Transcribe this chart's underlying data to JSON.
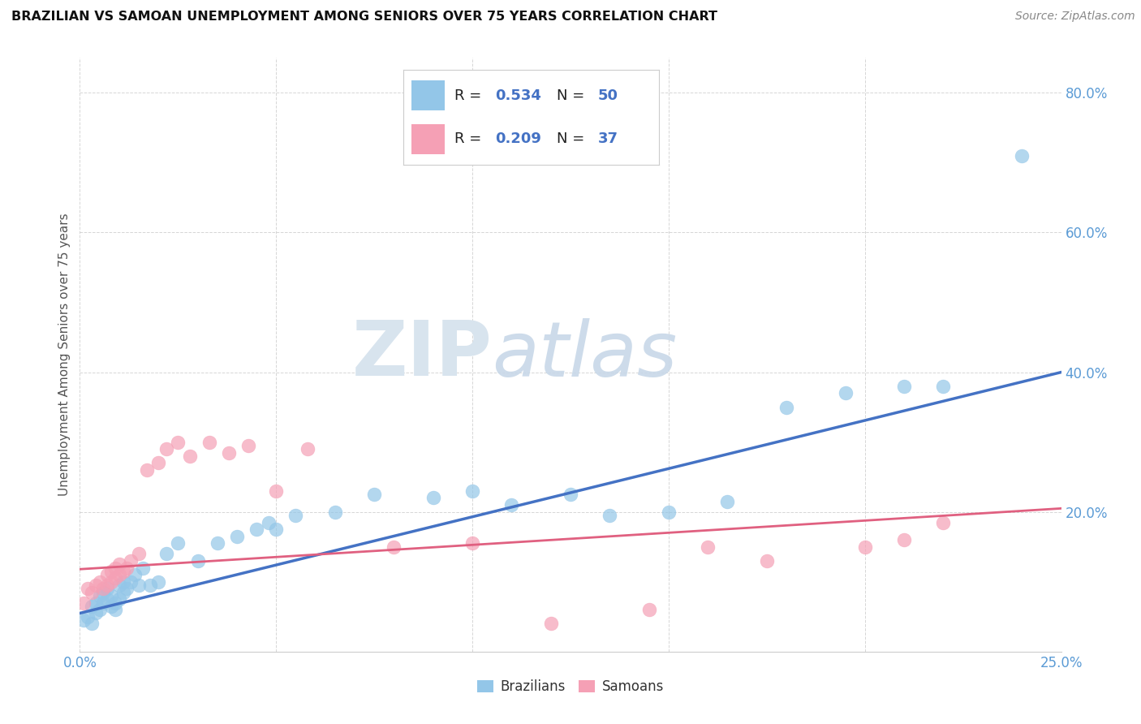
{
  "title": "BRAZILIAN VS SAMOAN UNEMPLOYMENT AMONG SENIORS OVER 75 YEARS CORRELATION CHART",
  "source": "Source: ZipAtlas.com",
  "ylabel": "Unemployment Among Seniors over 75 years",
  "xlim": [
    0.0,
    0.25
  ],
  "ylim": [
    0.0,
    0.85
  ],
  "xticks": [
    0.0,
    0.05,
    0.1,
    0.15,
    0.2,
    0.25
  ],
  "yticks": [
    0.0,
    0.2,
    0.4,
    0.6,
    0.8
  ],
  "brazil_color": "#93C6E8",
  "samoa_color": "#F5A0B5",
  "brazil_line_color": "#4472C4",
  "samoa_line_color": "#E06080",
  "stat_color": "#4472C4",
  "brazil_R": "0.534",
  "brazil_N": "50",
  "samoa_R": "0.209",
  "samoa_N": "37",
  "watermark_zip": "ZIP",
  "watermark_atlas": "atlas",
  "brazil_x": [
    0.001,
    0.002,
    0.003,
    0.003,
    0.004,
    0.004,
    0.005,
    0.005,
    0.006,
    0.006,
    0.007,
    0.007,
    0.008,
    0.008,
    0.009,
    0.009,
    0.01,
    0.01,
    0.011,
    0.011,
    0.012,
    0.013,
    0.014,
    0.015,
    0.016,
    0.018,
    0.02,
    0.022,
    0.025,
    0.03,
    0.035,
    0.04,
    0.045,
    0.048,
    0.05,
    0.055,
    0.065,
    0.075,
    0.09,
    0.1,
    0.11,
    0.125,
    0.135,
    0.15,
    0.165,
    0.18,
    0.195,
    0.21,
    0.22,
    0.24
  ],
  "brazil_y": [
    0.045,
    0.05,
    0.04,
    0.065,
    0.055,
    0.07,
    0.06,
    0.08,
    0.07,
    0.085,
    0.075,
    0.09,
    0.065,
    0.08,
    0.06,
    0.07,
    0.075,
    0.095,
    0.085,
    0.1,
    0.09,
    0.1,
    0.11,
    0.095,
    0.12,
    0.095,
    0.1,
    0.14,
    0.155,
    0.13,
    0.155,
    0.165,
    0.175,
    0.185,
    0.175,
    0.195,
    0.2,
    0.225,
    0.22,
    0.23,
    0.21,
    0.225,
    0.195,
    0.2,
    0.215,
    0.35,
    0.37,
    0.38,
    0.38,
    0.71
  ],
  "samoa_x": [
    0.001,
    0.002,
    0.003,
    0.004,
    0.005,
    0.006,
    0.007,
    0.007,
    0.008,
    0.008,
    0.009,
    0.009,
    0.01,
    0.01,
    0.011,
    0.012,
    0.013,
    0.015,
    0.017,
    0.02,
    0.022,
    0.025,
    0.028,
    0.033,
    0.038,
    0.043,
    0.05,
    0.058,
    0.08,
    0.1,
    0.12,
    0.145,
    0.16,
    0.175,
    0.2,
    0.21,
    0.22
  ],
  "samoa_y": [
    0.07,
    0.09,
    0.085,
    0.095,
    0.1,
    0.09,
    0.095,
    0.11,
    0.1,
    0.115,
    0.105,
    0.12,
    0.11,
    0.125,
    0.115,
    0.12,
    0.13,
    0.14,
    0.26,
    0.27,
    0.29,
    0.3,
    0.28,
    0.3,
    0.285,
    0.295,
    0.23,
    0.29,
    0.15,
    0.155,
    0.04,
    0.06,
    0.15,
    0.13,
    0.15,
    0.16,
    0.185
  ]
}
